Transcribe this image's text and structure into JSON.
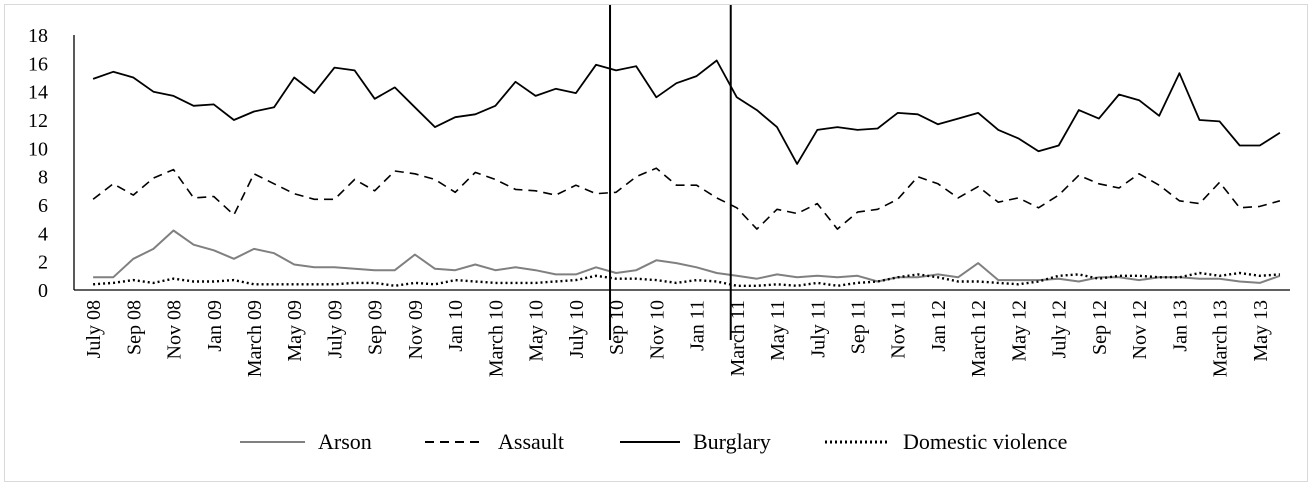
{
  "chart_data": {
    "type": "line",
    "ylim": [
      0,
      18
    ],
    "yticks": [
      "0",
      "2",
      "4",
      "6",
      "8",
      "10",
      "12",
      "14",
      "16",
      "18"
    ],
    "grid": false,
    "legend_position": "bottom",
    "x": [
      "July 08",
      "Aug 08",
      "Sep 08",
      "Oct 08",
      "Nov 08",
      "Dec 08",
      "Jan 09",
      "Feb 09",
      "March 09",
      "April 09",
      "May 09",
      "June 09",
      "July 09",
      "Aug 09",
      "Sep 09",
      "Oct 09",
      "Nov 09",
      "Dec 09",
      "Jan 10",
      "Feb 10",
      "March 10",
      "April 10",
      "May 10",
      "June 10",
      "July 10",
      "Aug 10",
      "Sep 10",
      "Oct 10",
      "Nov 10",
      "Dec 10",
      "Jan 11",
      "Feb 11",
      "March 11",
      "April 11",
      "May 11",
      "June 11",
      "July 11",
      "Aug 11",
      "Sep 11",
      "Oct 11",
      "Nov 11",
      "Dec 11",
      "Jan 12",
      "Feb 12",
      "March 12",
      "April 12",
      "May 12",
      "June 12",
      "July 12",
      "Aug 12",
      "Sep 12",
      "Oct 12",
      "Nov 12",
      "Dec 12",
      "Jan 13",
      "Feb 13",
      "March 13",
      "April 13",
      "May 13",
      "June 13"
    ],
    "x_tick_labels": [
      "July 08",
      "Sep 08",
      "Nov 08",
      "Jan 09",
      "March 09",
      "May 09",
      "July 09",
      "Sep 09",
      "Nov 09",
      "Jan 10",
      "March 10",
      "May 10",
      "July 10",
      "Sep 10",
      "Nov 10",
      "Jan 11",
      "March 11",
      "May 11",
      "July 11",
      "Sep 11",
      "Nov 11",
      "Jan 12",
      "March 12",
      "May 12",
      "July 12",
      "Sep 12",
      "Nov 12",
      "Jan 13",
      "March 13",
      "May 13"
    ],
    "vertical_markers": [
      "Aug 10",
      "Feb 11"
    ],
    "series": [
      {
        "name": "Arson",
        "color": "#808080",
        "dash": "solid",
        "values": [
          0.9,
          0.9,
          2.2,
          2.9,
          4.2,
          3.2,
          2.8,
          2.2,
          2.9,
          2.6,
          1.8,
          1.6,
          1.6,
          1.5,
          1.4,
          1.4,
          2.5,
          1.5,
          1.4,
          1.8,
          1.4,
          1.6,
          1.4,
          1.1,
          1.1,
          1.6,
          1.2,
          1.4,
          2.1,
          1.9,
          1.6,
          1.2,
          1.0,
          0.8,
          1.1,
          0.9,
          1.0,
          0.9,
          1.0,
          0.6,
          0.9,
          0.9,
          1.1,
          0.9,
          1.9,
          0.7,
          0.7,
          0.7,
          0.8,
          0.6,
          0.9,
          0.9,
          0.7,
          0.9,
          0.9,
          0.8,
          0.8,
          0.6,
          0.5,
          1.0
        ]
      },
      {
        "name": "Assault",
        "color": "#000000",
        "dash": "dashed",
        "values": [
          6.4,
          7.5,
          6.7,
          7.9,
          8.5,
          6.5,
          6.6,
          5.3,
          8.2,
          7.5,
          6.8,
          6.4,
          6.4,
          7.8,
          7.0,
          8.4,
          8.2,
          7.8,
          6.9,
          8.3,
          7.8,
          7.1,
          7.0,
          6.7,
          7.4,
          6.8,
          6.9,
          8.0,
          8.6,
          7.4,
          7.4,
          6.5,
          5.8,
          4.3,
          5.7,
          5.4,
          6.1,
          4.3,
          5.5,
          5.7,
          6.4,
          8.0,
          7.5,
          6.5,
          7.3,
          6.2,
          6.5,
          5.8,
          6.7,
          8.1,
          7.5,
          7.2,
          8.2,
          7.4,
          6.3,
          6.1,
          7.6,
          5.8,
          5.9,
          6.3
        ]
      },
      {
        "name": "Burglary",
        "color": "#000000",
        "dash": "solid",
        "values": [
          14.9,
          15.4,
          15.0,
          14.0,
          13.7,
          13.0,
          13.1,
          12.0,
          12.6,
          12.9,
          15.0,
          13.9,
          15.7,
          15.5,
          13.5,
          14.3,
          12.9,
          11.5,
          12.2,
          12.4,
          13.0,
          14.7,
          13.7,
          14.2,
          13.9,
          15.9,
          15.5,
          15.8,
          13.6,
          14.6,
          15.1,
          16.2,
          13.6,
          12.7,
          11.5,
          8.9,
          11.3,
          11.5,
          11.3,
          11.4,
          12.5,
          12.4,
          11.7,
          12.1,
          12.5,
          11.3,
          10.7,
          9.8,
          10.2,
          12.7,
          12.1,
          13.8,
          13.4,
          12.3,
          15.3,
          12.0,
          11.9,
          10.2,
          10.2,
          11.1
        ]
      },
      {
        "name": "Domestic violence",
        "color": "#000000",
        "dash": "dotted",
        "values": [
          0.4,
          0.5,
          0.7,
          0.5,
          0.8,
          0.6,
          0.6,
          0.7,
          0.4,
          0.4,
          0.4,
          0.4,
          0.4,
          0.5,
          0.5,
          0.3,
          0.5,
          0.4,
          0.7,
          0.6,
          0.5,
          0.5,
          0.5,
          0.6,
          0.7,
          1.0,
          0.8,
          0.8,
          0.7,
          0.5,
          0.7,
          0.6,
          0.3,
          0.3,
          0.4,
          0.3,
          0.5,
          0.3,
          0.5,
          0.6,
          0.9,
          1.1,
          0.9,
          0.6,
          0.6,
          0.5,
          0.4,
          0.6,
          1.0,
          1.1,
          0.8,
          1.0,
          1.0,
          0.9,
          0.9,
          1.2,
          1.0,
          1.2,
          1.0,
          1.1
        ]
      }
    ]
  }
}
